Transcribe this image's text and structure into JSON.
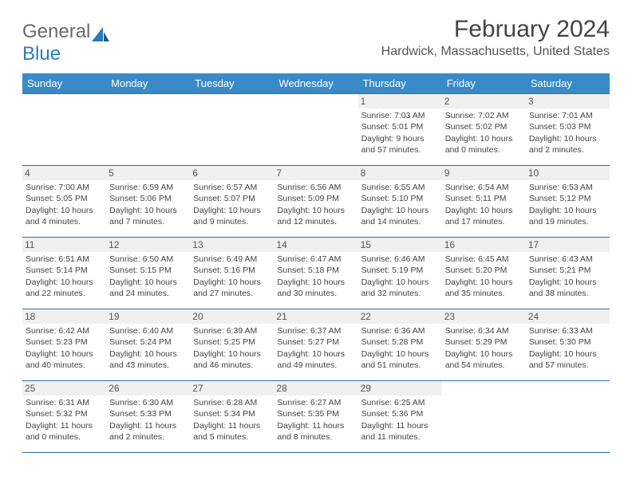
{
  "logo": {
    "part1": "General",
    "part2": "Blue"
  },
  "title": "February 2024",
  "subtitle": "Hardwick, Massachusetts, United States",
  "dayHeaders": [
    "Sunday",
    "Monday",
    "Tuesday",
    "Wednesday",
    "Thursday",
    "Friday",
    "Saturday"
  ],
  "colors": {
    "headerBg": "#3a8ac8",
    "headerText": "#ffffff",
    "border": "#2b6fa9",
    "logoBlue": "#2b7bbd"
  },
  "weeks": [
    [
      {
        "empty": true
      },
      {
        "empty": true
      },
      {
        "empty": true
      },
      {
        "empty": true
      },
      {
        "num": "1",
        "sunrise": "Sunrise: 7:03 AM",
        "sunset": "Sunset: 5:01 PM",
        "daylight": "Daylight: 9 hours and 57 minutes."
      },
      {
        "num": "2",
        "sunrise": "Sunrise: 7:02 AM",
        "sunset": "Sunset: 5:02 PM",
        "daylight": "Daylight: 10 hours and 0 minutes."
      },
      {
        "num": "3",
        "sunrise": "Sunrise: 7:01 AM",
        "sunset": "Sunset: 5:03 PM",
        "daylight": "Daylight: 10 hours and 2 minutes."
      }
    ],
    [
      {
        "num": "4",
        "sunrise": "Sunrise: 7:00 AM",
        "sunset": "Sunset: 5:05 PM",
        "daylight": "Daylight: 10 hours and 4 minutes."
      },
      {
        "num": "5",
        "sunrise": "Sunrise: 6:59 AM",
        "sunset": "Sunset: 5:06 PM",
        "daylight": "Daylight: 10 hours and 7 minutes."
      },
      {
        "num": "6",
        "sunrise": "Sunrise: 6:57 AM",
        "sunset": "Sunset: 5:07 PM",
        "daylight": "Daylight: 10 hours and 9 minutes."
      },
      {
        "num": "7",
        "sunrise": "Sunrise: 6:56 AM",
        "sunset": "Sunset: 5:09 PM",
        "daylight": "Daylight: 10 hours and 12 minutes."
      },
      {
        "num": "8",
        "sunrise": "Sunrise: 6:55 AM",
        "sunset": "Sunset: 5:10 PM",
        "daylight": "Daylight: 10 hours and 14 minutes."
      },
      {
        "num": "9",
        "sunrise": "Sunrise: 6:54 AM",
        "sunset": "Sunset: 5:11 PM",
        "daylight": "Daylight: 10 hours and 17 minutes."
      },
      {
        "num": "10",
        "sunrise": "Sunrise: 6:53 AM",
        "sunset": "Sunset: 5:12 PM",
        "daylight": "Daylight: 10 hours and 19 minutes."
      }
    ],
    [
      {
        "num": "11",
        "sunrise": "Sunrise: 6:51 AM",
        "sunset": "Sunset: 5:14 PM",
        "daylight": "Daylight: 10 hours and 22 minutes."
      },
      {
        "num": "12",
        "sunrise": "Sunrise: 6:50 AM",
        "sunset": "Sunset: 5:15 PM",
        "daylight": "Daylight: 10 hours and 24 minutes."
      },
      {
        "num": "13",
        "sunrise": "Sunrise: 6:49 AM",
        "sunset": "Sunset: 5:16 PM",
        "daylight": "Daylight: 10 hours and 27 minutes."
      },
      {
        "num": "14",
        "sunrise": "Sunrise: 6:47 AM",
        "sunset": "Sunset: 5:18 PM",
        "daylight": "Daylight: 10 hours and 30 minutes."
      },
      {
        "num": "15",
        "sunrise": "Sunrise: 6:46 AM",
        "sunset": "Sunset: 5:19 PM",
        "daylight": "Daylight: 10 hours and 32 minutes."
      },
      {
        "num": "16",
        "sunrise": "Sunrise: 6:45 AM",
        "sunset": "Sunset: 5:20 PM",
        "daylight": "Daylight: 10 hours and 35 minutes."
      },
      {
        "num": "17",
        "sunrise": "Sunrise: 6:43 AM",
        "sunset": "Sunset: 5:21 PM",
        "daylight": "Daylight: 10 hours and 38 minutes."
      }
    ],
    [
      {
        "num": "18",
        "sunrise": "Sunrise: 6:42 AM",
        "sunset": "Sunset: 5:23 PM",
        "daylight": "Daylight: 10 hours and 40 minutes."
      },
      {
        "num": "19",
        "sunrise": "Sunrise: 6:40 AM",
        "sunset": "Sunset: 5:24 PM",
        "daylight": "Daylight: 10 hours and 43 minutes."
      },
      {
        "num": "20",
        "sunrise": "Sunrise: 6:39 AM",
        "sunset": "Sunset: 5:25 PM",
        "daylight": "Daylight: 10 hours and 46 minutes."
      },
      {
        "num": "21",
        "sunrise": "Sunrise: 6:37 AM",
        "sunset": "Sunset: 5:27 PM",
        "daylight": "Daylight: 10 hours and 49 minutes."
      },
      {
        "num": "22",
        "sunrise": "Sunrise: 6:36 AM",
        "sunset": "Sunset: 5:28 PM",
        "daylight": "Daylight: 10 hours and 51 minutes."
      },
      {
        "num": "23",
        "sunrise": "Sunrise: 6:34 AM",
        "sunset": "Sunset: 5:29 PM",
        "daylight": "Daylight: 10 hours and 54 minutes."
      },
      {
        "num": "24",
        "sunrise": "Sunrise: 6:33 AM",
        "sunset": "Sunset: 5:30 PM",
        "daylight": "Daylight: 10 hours and 57 minutes."
      }
    ],
    [
      {
        "num": "25",
        "sunrise": "Sunrise: 6:31 AM",
        "sunset": "Sunset: 5:32 PM",
        "daylight": "Daylight: 11 hours and 0 minutes."
      },
      {
        "num": "26",
        "sunrise": "Sunrise: 6:30 AM",
        "sunset": "Sunset: 5:33 PM",
        "daylight": "Daylight: 11 hours and 2 minutes."
      },
      {
        "num": "27",
        "sunrise": "Sunrise: 6:28 AM",
        "sunset": "Sunset: 5:34 PM",
        "daylight": "Daylight: 11 hours and 5 minutes."
      },
      {
        "num": "28",
        "sunrise": "Sunrise: 6:27 AM",
        "sunset": "Sunset: 5:35 PM",
        "daylight": "Daylight: 11 hours and 8 minutes."
      },
      {
        "num": "29",
        "sunrise": "Sunrise: 6:25 AM",
        "sunset": "Sunset: 5:36 PM",
        "daylight": "Daylight: 11 hours and 11 minutes."
      },
      {
        "empty": true
      },
      {
        "empty": true
      }
    ]
  ]
}
